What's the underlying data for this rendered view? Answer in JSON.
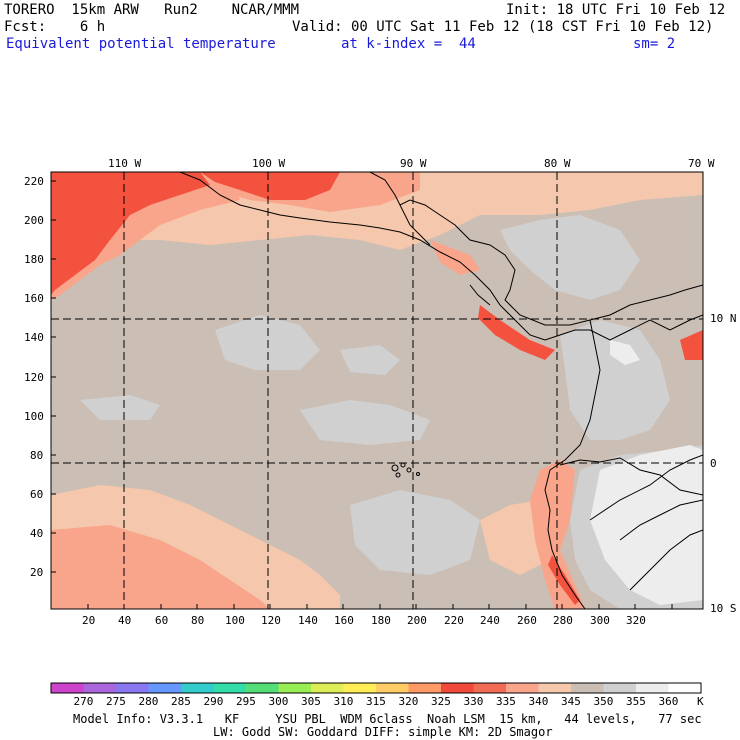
{
  "header": {
    "model": "TORERO  15km ARW   Run2    NCAR/MMM",
    "init": "Init: 18 UTC Fri 10 Feb 12",
    "fcst": "Fcst:    6 h",
    "valid": "Valid: 00 UTC Sat 11 Feb 12 (18 CST Fri 10 Feb 12)",
    "field": "Equivalent potential temperature",
    "level": "at k-index =  44",
    "smooth": "sm= 2"
  },
  "map": {
    "lon_labels": [
      "110 W",
      "100 W",
      "90 W",
      "80 W",
      "70 W"
    ],
    "lat_labels": [
      "10 N",
      "0",
      "10 S"
    ],
    "y_ticks": [
      "220",
      "200",
      "180",
      "160",
      "140",
      "120",
      "100",
      "80",
      "60",
      "40",
      "20"
    ],
    "x_ticks": [
      "20",
      "40",
      "60",
      "80",
      "100",
      "120",
      "140",
      "160",
      "180",
      "200",
      "220",
      "240",
      "260",
      "280",
      "300",
      "320"
    ],
    "colors": {
      "dominant": "#cbbeb5",
      "warm": "#f5c7ad",
      "warmer": "#f9a58b",
      "hot": "#f3523f",
      "cool": "#d0d0d0",
      "coolest": "#ededed"
    }
  },
  "colorbar": {
    "labels": [
      "270",
      "275",
      "280",
      "285",
      "290",
      "295",
      "300",
      "305",
      "310",
      "315",
      "320",
      "325",
      "330",
      "335",
      "340",
      "345",
      "350",
      "355",
      "360"
    ],
    "unit": "K",
    "colors": [
      "#cc44cc",
      "#aa66dd",
      "#8877ee",
      "#6699ff",
      "#33cccc",
      "#33ddaa",
      "#55dd77",
      "#99ee55",
      "#ddee55",
      "#ffee55",
      "#ffcc66",
      "#ff9966",
      "#f04a3a",
      "#f26b55",
      "#f9a58b",
      "#f5c7ad",
      "#cbbeb5",
      "#d0d0d0",
      "#ededed",
      "#ffffff"
    ]
  },
  "footer": {
    "line1": "Model Info: V3.3.1   KF     YSU PBL  WDM 6class  Noah LSM  15 km,   44 levels,   77 sec",
    "line2": "LW: Godd SW: Goddard DIFF: simple KM: 2D Smagor"
  }
}
